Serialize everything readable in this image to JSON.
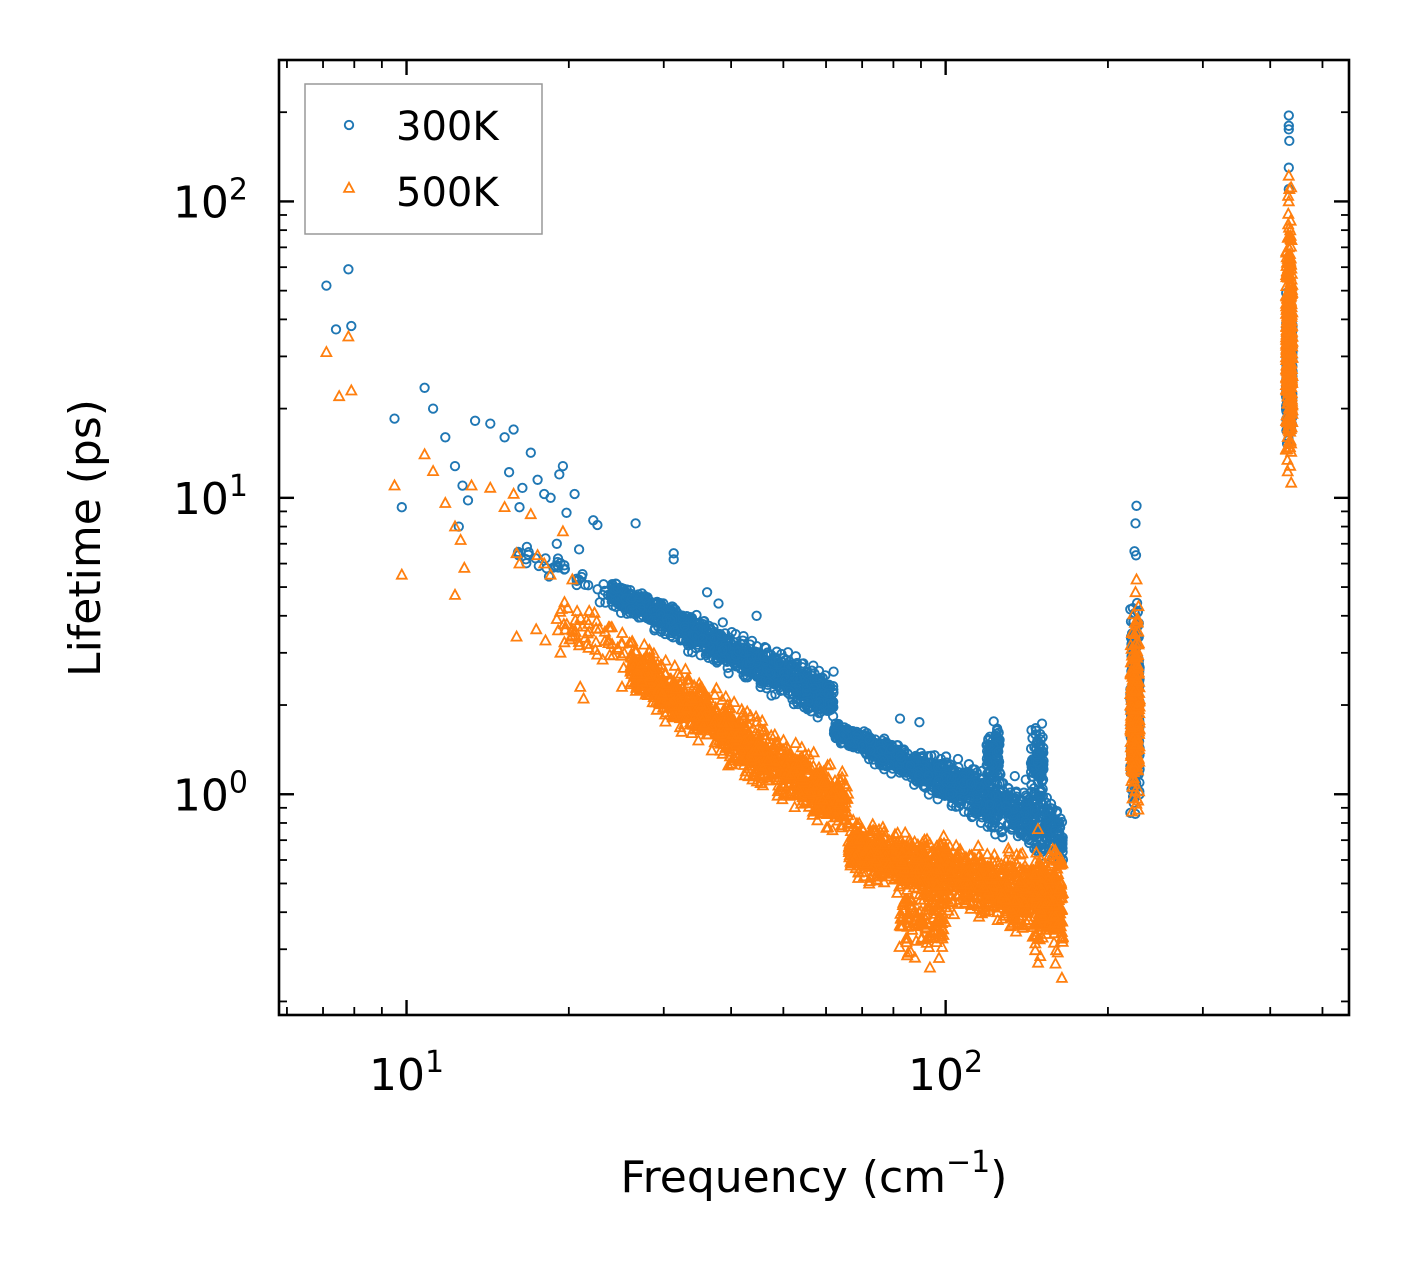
{
  "chart_data": {
    "type": "scatter",
    "title": "",
    "xlabel": "Frequency (cm⁻¹)",
    "xlabel_main": "Frequency (cm",
    "xlabel_sup": "−1",
    "xlabel_close": ")",
    "ylabel": "Lifetime (ps)",
    "xscale": "log",
    "yscale": "log",
    "xlim": [
      5.8,
      560
    ],
    "ylim": [
      0.18,
      300
    ],
    "x_tick_labels": [
      {
        "value": 10,
        "base": "10",
        "exp": "1"
      },
      {
        "value": 100,
        "base": "10",
        "exp": "2"
      }
    ],
    "y_tick_labels": [
      {
        "value": 1,
        "base": "10",
        "exp": "0"
      },
      {
        "value": 10,
        "base": "10",
        "exp": "1"
      },
      {
        "value": 100,
        "base": "10",
        "exp": "2"
      }
    ],
    "legend_position": "top-left",
    "series": [
      {
        "name": "300K",
        "marker": "circle",
        "color": "#1f77b4",
        "points": [
          [
            7.1,
            52
          ],
          [
            7.4,
            37
          ],
          [
            7.8,
            59
          ],
          [
            7.9,
            38
          ],
          [
            9.5,
            18.5
          ],
          [
            9.8,
            9.3
          ],
          [
            10.8,
            23.5
          ],
          [
            11.2,
            20
          ],
          [
            11.8,
            16
          ],
          [
            12.3,
            12.8
          ],
          [
            12.5,
            8
          ],
          [
            12.7,
            11
          ],
          [
            13,
            9.8
          ],
          [
            13.4,
            18.2
          ],
          [
            14.3,
            17.8
          ],
          [
            15.2,
            16
          ],
          [
            15.8,
            17
          ],
          [
            15.5,
            12.2
          ],
          [
            16.4,
            10.8
          ],
          [
            16.2,
            9.3
          ],
          [
            17,
            14.2
          ],
          [
            17.5,
            11.5
          ],
          [
            18,
            10.3
          ],
          [
            18.5,
            10
          ],
          [
            19,
            7
          ],
          [
            19.2,
            12
          ],
          [
            19.5,
            12.8
          ],
          [
            19.8,
            8.9
          ],
          [
            20.5,
            10.3
          ],
          [
            20.9,
            6.7
          ],
          [
            22.2,
            8.4
          ],
          [
            22.6,
            8.1
          ],
          [
            26.6,
            8.2
          ],
          [
            31.3,
            6.5
          ],
          [
            31.3,
            6.2
          ],
          [
            36.1,
            4.8
          ],
          [
            37.9,
            4.4
          ],
          [
            38.6,
            3.8
          ],
          [
            44.6,
            4
          ],
          [
            82.3,
            1.8
          ],
          [
            89.4,
            1.75
          ],
          [
            226,
            9.4
          ],
          [
            225,
            8.2
          ],
          [
            224,
            6.6
          ],
          [
            225.5,
            6.4
          ],
          [
            433,
            195
          ],
          [
            433,
            180
          ],
          [
            433,
            175
          ],
          [
            434,
            160
          ],
          [
            433,
            130
          ],
          [
            433,
            110
          ]
        ],
        "clusters": [
          {
            "x_range": [
              16,
              25
            ],
            "y_log10_start": [
              0.9,
              0.75
            ],
            "y_log10_end": [
              0.72,
              0.58
            ],
            "spread": 0.12,
            "n": 45
          },
          {
            "x_range": [
              24,
              62
            ],
            "y_log10_start": [
              0.74,
              0.62
            ],
            "y_log10_end": [
              0.43,
              0.2
            ],
            "spread": 0.18,
            "n": 1100
          },
          {
            "x_range": [
              62,
              165
            ],
            "y_log10_start": [
              0.25,
              0.18
            ],
            "y_log10_end": [
              0.03,
              -0.3
            ],
            "spread": 0.17,
            "n": 1200
          },
          {
            "x_range": [
              119,
              126
            ],
            "y_log10_start": [
              0.27,
              0.0
            ],
            "y_log10_end": [
              0.27,
              0.0
            ],
            "spread": 0.14,
            "n": 90
          },
          {
            "x_range": [
              144,
              152
            ],
            "y_log10_start": [
              0.27,
              -0.05
            ],
            "y_log10_end": [
              0.27,
              -0.05
            ],
            "spread": 0.15,
            "n": 90
          },
          {
            "x_range": [
              220,
              229
            ],
            "y_log10_start": [
              0.75,
              -0.15
            ],
            "y_log10_end": [
              0.75,
              -0.15
            ],
            "spread": 0.0,
            "n": 260
          },
          {
            "x_range": [
              428,
              440
            ],
            "y_log10_start": [
              1.74,
              1.15
            ],
            "y_log10_end": [
              1.74,
              1.15
            ],
            "spread": 0.0,
            "n": 360
          }
        ]
      },
      {
        "name": "500K",
        "marker": "triangle",
        "color": "#ff7f0e",
        "points": [
          [
            7.1,
            31
          ],
          [
            7.5,
            22
          ],
          [
            7.8,
            35
          ],
          [
            7.9,
            23
          ],
          [
            9.5,
            11
          ],
          [
            9.8,
            5.5
          ],
          [
            10.8,
            14
          ],
          [
            11.2,
            12.3
          ],
          [
            11.8,
            9.6
          ],
          [
            12.3,
            8
          ],
          [
            12.3,
            4.7
          ],
          [
            12.6,
            7.2
          ],
          [
            12.8,
            5.8
          ],
          [
            13.2,
            11
          ],
          [
            14.3,
            10.8
          ],
          [
            15.2,
            9.3
          ],
          [
            15.8,
            10.3
          ],
          [
            16,
            6.5
          ],
          [
            16.2,
            6
          ],
          [
            17,
            8.8
          ],
          [
            17.5,
            6.4
          ],
          [
            18,
            6
          ],
          [
            18.5,
            5.5
          ],
          [
            19.5,
            7.7
          ],
          [
            20.3,
            5.3
          ],
          [
            16,
            3.4
          ],
          [
            17.4,
            3.6
          ],
          [
            18.1,
            3.3
          ],
          [
            19,
            3.9
          ],
          [
            19.3,
            3
          ],
          [
            21,
            2.3
          ],
          [
            21.3,
            2.1
          ],
          [
            25.1,
            2.3
          ],
          [
            93.5,
            0.26
          ],
          [
            97.2,
            0.28
          ],
          [
            148.4,
            0.27
          ],
          [
            164.3,
            0.24
          ],
          [
            226,
            5.3
          ],
          [
            225,
            4.8
          ],
          [
            433,
            122
          ],
          [
            434,
            110
          ],
          [
            433,
            100
          ]
        ],
        "clusters": [
          {
            "x_range": [
              19,
              27
            ],
            "y_log10_start": [
              0.7,
              0.5
            ],
            "y_log10_end": [
              0.6,
              0.35
            ],
            "spread": 0.15,
            "n": 60
          },
          {
            "x_range": [
              26,
              66
            ],
            "y_log10_start": [
              0.55,
              0.3
            ],
            "y_log10_end": [
              0.1,
              -0.2
            ],
            "spread": 0.2,
            "n": 1100
          },
          {
            "x_range": [
              66,
              165
            ],
            "y_log10_start": [
              -0.05,
              -0.3
            ],
            "y_log10_end": [
              -0.2,
              -0.55
            ],
            "spread": 0.18,
            "n": 1200
          },
          {
            "x_range": [
              82,
              100
            ],
            "y_log10_start": [
              -0.25,
              -0.58
            ],
            "y_log10_end": [
              -0.25,
              -0.58
            ],
            "spread": 0.0,
            "n": 120
          },
          {
            "x_range": [
              145,
              165
            ],
            "y_log10_start": [
              -0.1,
              -0.62
            ],
            "y_log10_end": [
              -0.1,
              -0.62
            ],
            "spread": 0.0,
            "n": 150
          },
          {
            "x_range": [
              220,
              229
            ],
            "y_log10_start": [
              0.7,
              -0.15
            ],
            "y_log10_end": [
              0.7,
              -0.15
            ],
            "spread": 0.0,
            "n": 260
          },
          {
            "x_range": [
              428,
              440
            ],
            "y_log10_start": [
              2.08,
              0.97
            ],
            "y_log10_end": [
              2.08,
              0.97
            ],
            "spread": 0.0,
            "n": 360
          }
        ]
      }
    ]
  }
}
